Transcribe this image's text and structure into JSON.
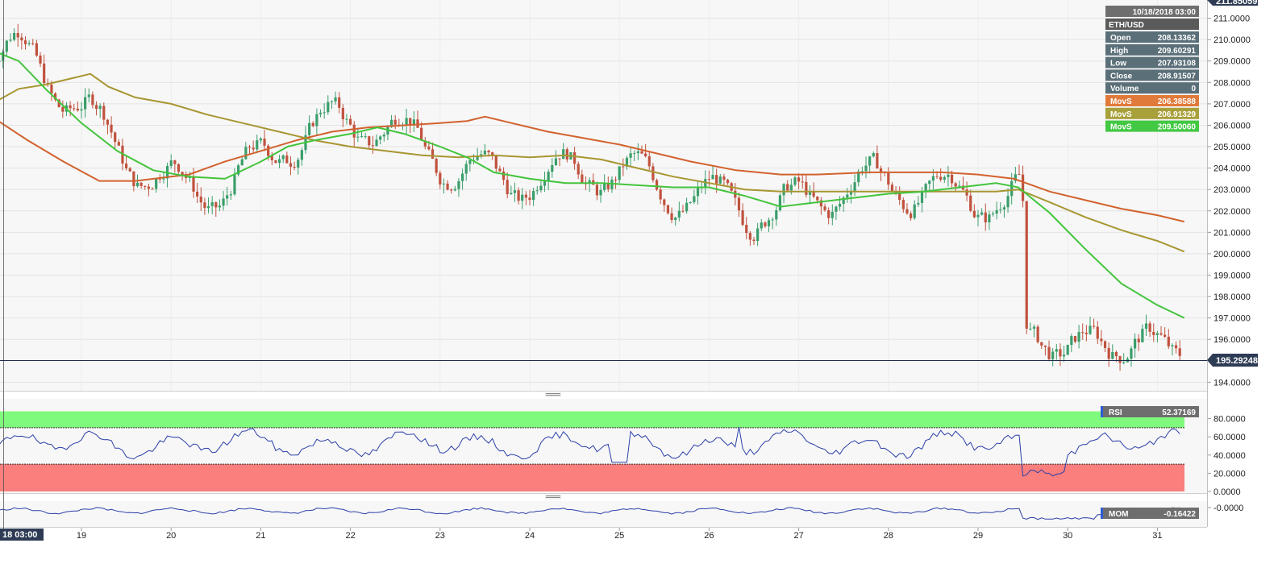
{
  "chart_data": {
    "type": "candlestick",
    "instrument": "ETH/USD",
    "price_axis": {
      "ylim": [
        193.6,
        211.85
      ],
      "tick_labels": [
        "211.0000",
        "210.0000",
        "209.0000",
        "208.0000",
        "207.0000",
        "206.0000",
        "205.0000",
        "204.0000",
        "203.0000",
        "202.0000",
        "201.0000",
        "200.0000",
        "199.0000",
        "198.0000",
        "197.0000",
        "196.0000",
        "195.0000",
        "194.0000"
      ],
      "top_label": "211.85059",
      "last_price": 195.29248,
      "last_price_label": "195.29248"
    },
    "x_axis": {
      "day_labels": [
        "19",
        "20",
        "21",
        "22",
        "23",
        "24",
        "25",
        "26",
        "27",
        "28",
        "29",
        "30",
        "31"
      ],
      "cursor_label": "10/18/2018 03:00",
      "cursor_label_shown": "18 03:00"
    },
    "tooltip": {
      "datetime": "10/18/2018 03:00",
      "symbol": "ETH/USD",
      "rows": [
        {
          "label": "Open",
          "value": "208.13362",
          "color": "#5a6f78"
        },
        {
          "label": "High",
          "value": "209.60291",
          "color": "#5a6f78"
        },
        {
          "label": "Low",
          "value": "207.93108",
          "color": "#5a6f78"
        },
        {
          "label": "Close",
          "value": "208.91507",
          "color": "#5a6f78"
        },
        {
          "label": "Volume",
          "value": "0",
          "color": "#5a6f78"
        },
        {
          "label": "MovS",
          "value": "206.38588",
          "color": "#e07a3a"
        },
        {
          "label": "MovS",
          "value": "206.91329",
          "color": "#a8a03a"
        },
        {
          "label": "MovS",
          "value": "209.50060",
          "color": "#43c843"
        }
      ]
    },
    "moving_averages": [
      {
        "label": "MovS",
        "color": "#d2622e",
        "points": [
          [
            18.0,
            206.4
          ],
          [
            18.4,
            205.3
          ],
          [
            18.8,
            204.3
          ],
          [
            19.2,
            203.4
          ],
          [
            19.6,
            203.4
          ],
          [
            20.0,
            203.6
          ],
          [
            20.2,
            203.7
          ],
          [
            20.6,
            204.3
          ],
          [
            21.0,
            204.8
          ],
          [
            21.4,
            205.3
          ],
          [
            21.8,
            205.7
          ],
          [
            22.2,
            205.9
          ],
          [
            22.6,
            206.0
          ],
          [
            23.0,
            206.1
          ],
          [
            23.3,
            206.2
          ],
          [
            23.5,
            206.4
          ],
          [
            23.8,
            206.1
          ],
          [
            24.2,
            205.7
          ],
          [
            24.6,
            205.4
          ],
          [
            25.0,
            205.1
          ],
          [
            25.4,
            204.7
          ],
          [
            25.8,
            204.3
          ],
          [
            26.3,
            203.9
          ],
          [
            26.8,
            203.7
          ],
          [
            27.2,
            203.7
          ],
          [
            27.8,
            203.8
          ],
          [
            28.2,
            203.8
          ],
          [
            28.6,
            203.8
          ],
          [
            29.0,
            203.7
          ],
          [
            29.4,
            203.5
          ],
          [
            29.8,
            202.9
          ],
          [
            30.2,
            202.5
          ],
          [
            30.6,
            202.1
          ],
          [
            31.0,
            201.8
          ],
          [
            31.3,
            201.5
          ]
        ]
      },
      {
        "label": "MovS",
        "color": "#a89632",
        "points": [
          [
            18.0,
            207.0
          ],
          [
            18.3,
            207.7
          ],
          [
            18.6,
            207.9
          ],
          [
            18.9,
            208.2
          ],
          [
            19.1,
            208.4
          ],
          [
            19.3,
            207.8
          ],
          [
            19.6,
            207.3
          ],
          [
            20.0,
            207.0
          ],
          [
            20.4,
            206.5
          ],
          [
            20.8,
            206.1
          ],
          [
            21.2,
            205.7
          ],
          [
            21.6,
            205.3
          ],
          [
            22.0,
            205.0
          ],
          [
            22.4,
            204.8
          ],
          [
            22.8,
            204.6
          ],
          [
            23.2,
            204.5
          ],
          [
            23.6,
            204.6
          ],
          [
            24.0,
            204.5
          ],
          [
            24.4,
            204.6
          ],
          [
            24.8,
            204.4
          ],
          [
            25.2,
            204.0
          ],
          [
            25.6,
            203.6
          ],
          [
            26.0,
            203.3
          ],
          [
            26.4,
            203.0
          ],
          [
            26.8,
            202.9
          ],
          [
            27.2,
            202.9
          ],
          [
            27.6,
            202.9
          ],
          [
            28.0,
            202.9
          ],
          [
            28.4,
            202.9
          ],
          [
            28.8,
            202.9
          ],
          [
            29.2,
            202.9
          ],
          [
            29.45,
            203.0
          ],
          [
            29.8,
            202.4
          ],
          [
            30.2,
            201.7
          ],
          [
            30.6,
            201.1
          ],
          [
            31.0,
            200.6
          ],
          [
            31.3,
            200.1
          ]
        ]
      },
      {
        "label": "MovS",
        "color": "#43c43c",
        "points": [
          [
            18.0,
            209.5
          ],
          [
            18.3,
            209.0
          ],
          [
            18.6,
            207.7
          ],
          [
            19.0,
            206.1
          ],
          [
            19.4,
            204.8
          ],
          [
            19.8,
            203.9
          ],
          [
            20.2,
            203.6
          ],
          [
            20.6,
            203.5
          ],
          [
            21.0,
            204.3
          ],
          [
            21.3,
            205.0
          ],
          [
            21.6,
            205.3
          ],
          [
            22.0,
            205.6
          ],
          [
            22.3,
            205.9
          ],
          [
            22.6,
            205.6
          ],
          [
            23.0,
            205.0
          ],
          [
            23.3,
            204.5
          ],
          [
            23.6,
            203.8
          ],
          [
            24.0,
            203.5
          ],
          [
            24.4,
            203.3
          ],
          [
            24.8,
            203.3
          ],
          [
            25.2,
            203.2
          ],
          [
            25.6,
            203.1
          ],
          [
            26.0,
            203.1
          ],
          [
            26.4,
            202.7
          ],
          [
            26.8,
            202.2
          ],
          [
            27.2,
            202.4
          ],
          [
            27.6,
            202.6
          ],
          [
            28.0,
            202.8
          ],
          [
            28.4,
            202.9
          ],
          [
            28.8,
            203.1
          ],
          [
            29.2,
            203.3
          ],
          [
            29.45,
            203.1
          ],
          [
            29.8,
            201.9
          ],
          [
            30.2,
            200.2
          ],
          [
            30.6,
            198.6
          ],
          [
            31.0,
            197.6
          ],
          [
            31.3,
            197.0
          ]
        ]
      }
    ],
    "candles_summary": "Daily ETH/USD price trending from ~209 on the 18th down to ~203 by the 29th, then sharp drop to ~194-197 range on the 29th-31st",
    "rsi": {
      "label": "RSI",
      "value_label": "52.37169",
      "levels": [
        70,
        30
      ],
      "tick_labels": [
        "80.0000",
        "60.0000",
        "40.0000",
        "20.0000",
        "0.0000"
      ],
      "ylim": [
        0,
        100
      ]
    },
    "momentum": {
      "label": "MOM",
      "value_label": "-0.16422",
      "tick_labels": [
        "-0.0000"
      ]
    }
  }
}
